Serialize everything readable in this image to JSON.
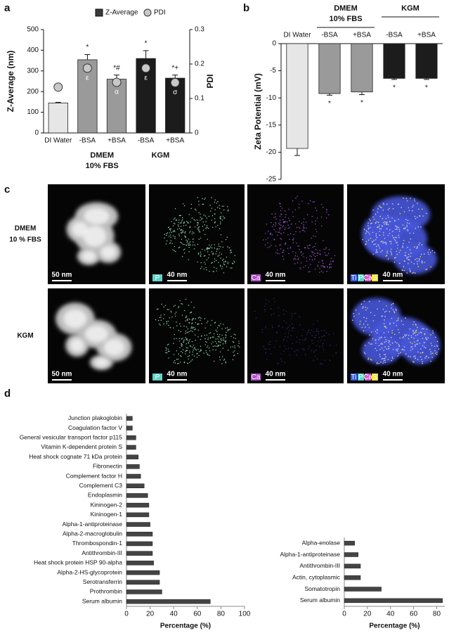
{
  "chart_data": [
    {
      "type": "bar",
      "panel": "a",
      "categories": [
        "DI Water",
        "-BSA",
        "+BSA",
        "-BSA",
        "+BSA"
      ],
      "groups": [
        [
          "DMEM",
          "10% FBS"
        ],
        [
          "KGM"
        ]
      ],
      "y_label": "Z-Average (nm)",
      "y2_label": "PDI",
      "series": [
        {
          "name": "Z-Average",
          "color": "#3a3a3a",
          "bar_colors": [
            "#e6e6e6",
            "#9a9a9a",
            "#9a9a9a",
            "#1c1c1c",
            "#1c1c1c"
          ],
          "values": [
            145,
            354,
            260,
            360,
            265
          ],
          "errors": [
            3,
            25,
            20,
            38,
            15
          ],
          "annotations": [
            null,
            "*",
            "*#",
            "*",
            "*+"
          ]
        },
        {
          "name": "PDI",
          "type": "scatter",
          "axis": "y2",
          "color": "#c8c8c8",
          "values": [
            0.133,
            0.188,
            0.147,
            0.188,
            0.146
          ],
          "symbols": [
            null,
            "ε",
            "α",
            "ε",
            "σ"
          ]
        }
      ],
      "ylim": [
        0,
        500
      ],
      "yticks": [
        0,
        100,
        200,
        300,
        400,
        500
      ],
      "y2lim": [
        0,
        0.3
      ],
      "y2ticks": [
        0,
        0.1,
        0.2,
        0.3
      ],
      "legend": "top"
    },
    {
      "type": "bar",
      "panel": "b",
      "categories": [
        "DI Water",
        "-BSA",
        "+BSA",
        "-BSA",
        "+BSA"
      ],
      "groups": [
        [
          "DMEM",
          "10% FBS"
        ],
        [
          "KGM"
        ]
      ],
      "y_label": "Zeta Potential (mV)",
      "bar_colors": [
        "#e6e6e6",
        "#9a9a9a",
        "#9a9a9a",
        "#1c1c1c",
        "#1c1c1c"
      ],
      "values": [
        -19.3,
        -9.2,
        -8.9,
        -6.4,
        -6.4
      ],
      "errors": [
        1.3,
        0.3,
        0.5,
        0.2,
        0.2
      ],
      "annotations": [
        null,
        "*",
        "*",
        "*",
        "*"
      ],
      "ylim": [
        -25,
        0
      ],
      "yticks": [
        -25,
        -20,
        -15,
        -10,
        -5,
        0
      ]
    },
    {
      "type": "barh",
      "panel": "d",
      "x_label": "Percentage (%)",
      "color": "#444444",
      "categories": [
        "Junction plakoglobin",
        "Coagulation factor V",
        "General vesicular transport factor p115",
        "Vitamin K-dependent protein S",
        "Heat shock cognate 71 kDa protein",
        "Fibronectin",
        "Complement factor H",
        "Complement C3",
        "Endoplasmin",
        "Kininogen-2",
        "Kininogen-1",
        "Alpha-1-antiproteinase",
        "Alpha-2-macroglobulin",
        "Thrombospondin-1",
        "Antithrombin-III",
        "Heat shock protein HSP 90-alpha",
        "Alpha-2-HS-glycoprotein",
        "Serotransferrin",
        "Prothrombin",
        "Serum albumin"
      ],
      "values": [
        5,
        5,
        8,
        8,
        10,
        11,
        12,
        15,
        18,
        19,
        19,
        20,
        22,
        22,
        22,
        23,
        28,
        28,
        30,
        71
      ],
      "xlim": [
        0,
        100
      ],
      "xticks": [
        0,
        20,
        40,
        60,
        80,
        100
      ]
    },
    {
      "type": "barh",
      "x_label": "Percentage (%)",
      "color": "#444444",
      "categories": [
        "Alpha-enolase",
        "Alpha-1-antiproteinase",
        "Antithrombin-III",
        "Actin, cytoplasmic",
        "Somatotropin",
        "Serum albumin"
      ],
      "values": [
        9,
        12,
        14,
        14,
        32,
        85
      ],
      "xlim": [
        0,
        87
      ],
      "xticks": [
        0,
        20,
        40,
        60,
        80
      ]
    }
  ],
  "micrographs": {
    "panel": "c",
    "rows": [
      {
        "label": [
          "DMEM",
          "10 % FBS"
        ],
        "scale_bars": [
          "50 nm",
          "40 nm",
          "40 nm",
          "40 nm"
        ],
        "elements": [
          [],
          [
            {
              "label": "P",
              "color": "#5fd3c8"
            }
          ],
          [
            {
              "label": "Ca",
              "color": "#b050c8"
            }
          ],
          [
            {
              "label": "Ti",
              "color": "#3a5af0"
            },
            {
              "label": "P",
              "color": "#5fd3c8"
            },
            {
              "label": "Ca",
              "color": "#d060d0"
            },
            {
              "label": "S",
              "color": "#f0e030"
            }
          ]
        ]
      },
      {
        "label": [
          "KGM"
        ],
        "scale_bars": [
          "50 nm",
          "40 nm",
          "40 nm",
          "40 nm"
        ],
        "elements": [
          [],
          [
            {
              "label": "P",
              "color": "#5fd3c8"
            }
          ],
          [
            {
              "label": "Ca",
              "color": "#b050c8"
            }
          ],
          [
            {
              "label": "Ti",
              "color": "#3a5af0"
            },
            {
              "label": "P",
              "color": "#5fd3c8"
            },
            {
              "label": "Ca",
              "color": "#d060d0"
            },
            {
              "label": "S",
              "color": "#f0e030"
            }
          ]
        ]
      }
    ]
  }
}
